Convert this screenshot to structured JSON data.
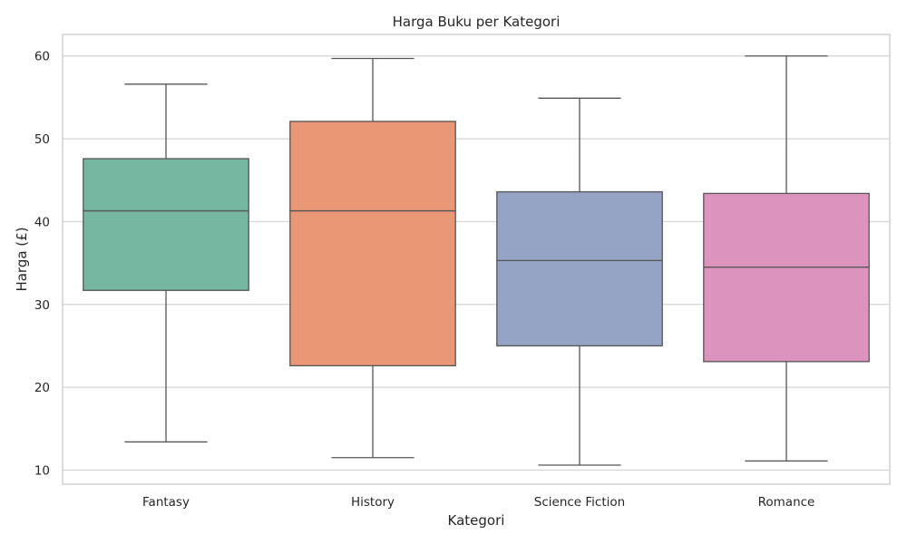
{
  "chart_data": {
    "type": "box",
    "title": "Harga Buku per Kategori",
    "xlabel": "Kategori",
    "ylabel": "Harga (£)",
    "ylim": [
      8.3,
      62.6
    ],
    "yticks": [
      10,
      20,
      30,
      40,
      50,
      60
    ],
    "grid": true,
    "categories": [
      "Fantasy",
      "History",
      "Science Fiction",
      "Romance"
    ],
    "boxes": [
      {
        "category": "Fantasy",
        "min": 13.4,
        "q1": 31.7,
        "median": 41.3,
        "q3": 47.6,
        "max": 56.6,
        "color": "#75b7a1"
      },
      {
        "category": "History",
        "min": 11.5,
        "q1": 22.6,
        "median": 41.3,
        "q3": 52.1,
        "max": 59.7,
        "color": "#e99775"
      },
      {
        "category": "Science Fiction",
        "min": 10.6,
        "q1": 25.0,
        "median": 35.3,
        "q3": 43.6,
        "max": 54.9,
        "color": "#95a4c4"
      },
      {
        "category": "Romance",
        "min": 11.1,
        "q1": 23.1,
        "median": 34.5,
        "q3": 43.4,
        "max": 60.0,
        "color": "#dc94bf"
      }
    ]
  }
}
